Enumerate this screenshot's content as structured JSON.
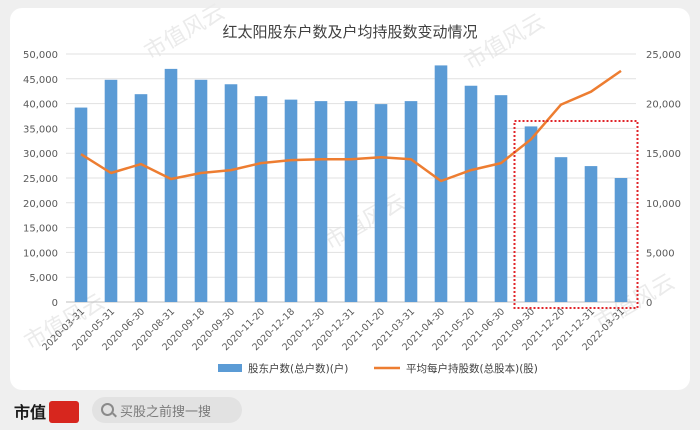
{
  "chart_data": {
    "type": "bar+line",
    "title": "红太阳股东户数及户均持股数变动情况",
    "categories": [
      "2020-03-31",
      "2020-05-31",
      "2020-06-30",
      "2020-08-31",
      "2020-09-18",
      "2020-09-30",
      "2020-11-20",
      "2020-12-18",
      "2020-12-30",
      "2020-12-31",
      "2021-01-20",
      "2021-03-31",
      "2021-04-30",
      "2021-05-20",
      "2021-06-30",
      "2021-09-30",
      "2021-12-20",
      "2021-12-31",
      "2022-03-31"
    ],
    "series": [
      {
        "name": "股东户数(总户数)(户)",
        "type": "bar",
        "axis": "left",
        "color": "#5b9bd5",
        "values": [
          39200,
          44800,
          41900,
          47000,
          44800,
          43900,
          41500,
          40800,
          40500,
          40500,
          39900,
          40500,
          47700,
          43600,
          41700,
          35400,
          29200,
          27400,
          25000
        ]
      },
      {
        "name": "平均每户持股数(总股本)(股)",
        "type": "line",
        "axis": "right",
        "color": "#ed7d31",
        "values": [
          14900,
          13000,
          13900,
          12400,
          13000,
          13300,
          14000,
          14300,
          14400,
          14400,
          14600,
          14400,
          12200,
          13300,
          14000,
          16400,
          19900,
          21200,
          23300
        ]
      }
    ],
    "ylim_left": [
      0,
      50000
    ],
    "ylim_right": [
      0,
      25000
    ],
    "yticks_left": [
      "0",
      "5,000",
      "10,000",
      "15,000",
      "20,000",
      "25,000",
      "30,000",
      "35,000",
      "40,000",
      "45,000",
      "50,000"
    ],
    "yticks_right": [
      "0",
      "5,000",
      "10,000",
      "15,000",
      "20,000",
      "25,000"
    ],
    "highlight_range": [
      "2021-09-30",
      "2022-03-31"
    ],
    "legend_position": "bottom-center"
  },
  "watermark": "市值风云",
  "footer": {
    "brand": "市值",
    "search_placeholder": "买股之前搜一搜"
  },
  "colors": {
    "bar": "#5b9bd5",
    "line": "#ed7d31",
    "highlight": "#e0242a"
  }
}
